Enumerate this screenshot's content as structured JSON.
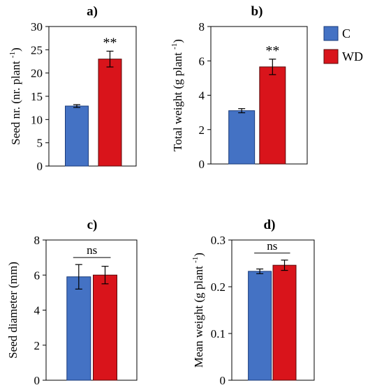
{
  "colors": {
    "C": "#4472c4",
    "WD": "#d9141b",
    "C_stroke": "#1a3b7a",
    "WD_stroke": "#5a0a0a"
  },
  "legend": {
    "items": [
      {
        "key": "C",
        "label": "C"
      },
      {
        "key": "WD",
        "label": "WD"
      }
    ]
  },
  "chart_data": [
    {
      "type": "bar",
      "panel": "a)",
      "ylabel": "Seed nr. (nr. plant -1)",
      "ylim": [
        0,
        30
      ],
      "yticks": [
        0,
        5,
        10,
        15,
        20,
        25,
        30
      ],
      "categories": [
        "C",
        "WD"
      ],
      "values": [
        12.9,
        23.0
      ],
      "errors": [
        0.3,
        1.7
      ],
      "significance": "**"
    },
    {
      "type": "bar",
      "panel": "b)",
      "ylabel": "Total weight (g plant -1)",
      "ylim": [
        0,
        8
      ],
      "yticks": [
        0,
        2,
        4,
        6,
        8
      ],
      "categories": [
        "C",
        "WD"
      ],
      "values": [
        3.1,
        5.65
      ],
      "errors": [
        0.12,
        0.45
      ],
      "significance": "**"
    },
    {
      "type": "bar",
      "panel": "c)",
      "ylabel": "Seed diameter (mm)",
      "ylim": [
        0,
        8
      ],
      "yticks": [
        0,
        2,
        4,
        6,
        8
      ],
      "categories": [
        "C",
        "WD"
      ],
      "values": [
        5.9,
        6.0
      ],
      "errors": [
        0.7,
        0.5
      ],
      "significance": "ns"
    },
    {
      "type": "bar",
      "panel": "d)",
      "ylabel": "Mean weight (g plant -1)",
      "ylim": [
        0,
        0.3
      ],
      "yticks": [
        0,
        0.1,
        0.2,
        0.3
      ],
      "categories": [
        "C",
        "WD"
      ],
      "values": [
        0.233,
        0.246
      ],
      "errors": [
        0.005,
        0.011
      ],
      "significance": "ns"
    }
  ]
}
